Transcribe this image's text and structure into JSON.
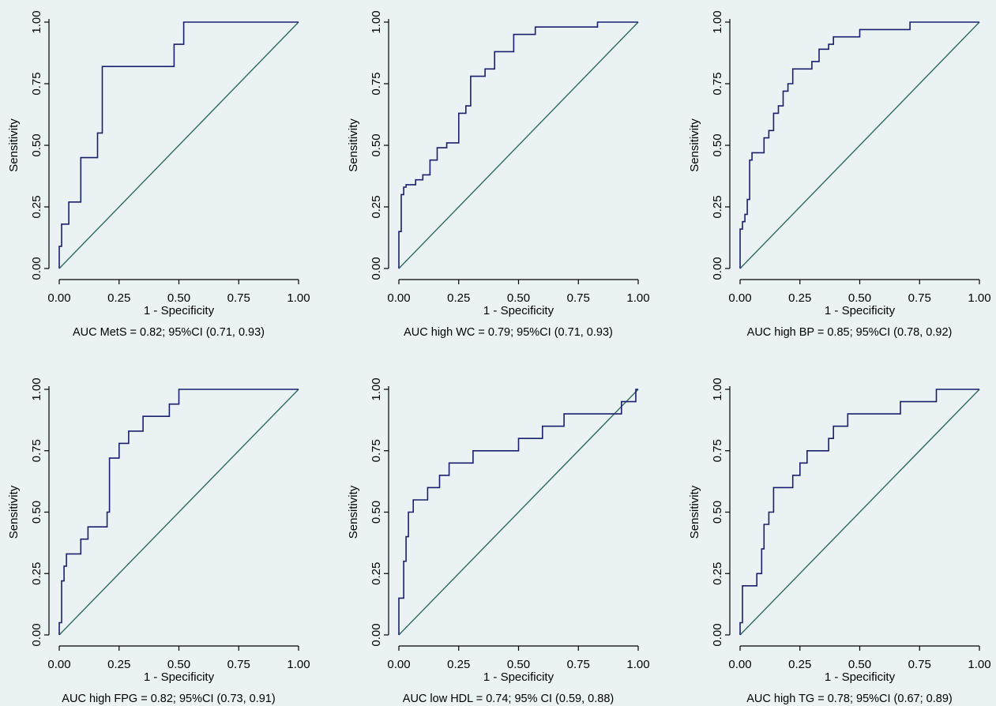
{
  "colors": {
    "background": "#eaf2f3",
    "roc_curve": "#1a1f6e",
    "reference_line": "#2e6b5f"
  },
  "chart_data": [
    {
      "type": "line",
      "xlabel": "1 - Specificity",
      "ylabel": "Sensitivity",
      "caption": "AUC MetS = 0.82; 95%CI (0.71, 0.93)",
      "xlim": [
        0,
        1
      ],
      "ylim": [
        0,
        1
      ],
      "x_ticks": [
        "0.00",
        "0.25",
        "0.50",
        "0.75",
        "1.00"
      ],
      "y_ticks": [
        "0.00",
        "0.25",
        "0.50",
        "0.75",
        "1.00"
      ],
      "grid": false,
      "reference_line": [
        [
          0,
          0
        ],
        [
          1,
          1
        ]
      ],
      "series": [
        {
          "x": [
            0,
            0,
            0.01,
            0.01,
            0.04,
            0.04,
            0.09,
            0.09,
            0.16,
            0.16,
            0.18,
            0.18,
            0.48,
            0.48,
            0.52,
            0.52,
            1.0
          ],
          "y": [
            0,
            0.09,
            0.09,
            0.18,
            0.18,
            0.27,
            0.27,
            0.45,
            0.45,
            0.55,
            0.55,
            0.82,
            0.82,
            0.91,
            0.91,
            1.0,
            1.0
          ]
        }
      ]
    },
    {
      "type": "line",
      "xlabel": "1 - Specificity",
      "ylabel": "Sensitivity",
      "caption": "AUC high WC = 0.79; 95%CI (0.71, 0.93)",
      "xlim": [
        0,
        1
      ],
      "ylim": [
        0,
        1
      ],
      "x_ticks": [
        "0.00",
        "0.25",
        "0.50",
        "0.75",
        "1.00"
      ],
      "y_ticks": [
        "0.00",
        "0.25",
        "0.50",
        "0.75",
        "1.00"
      ],
      "grid": false,
      "reference_line": [
        [
          0,
          0
        ],
        [
          1,
          1
        ]
      ],
      "series": [
        {
          "x": [
            0,
            0,
            0.01,
            0.01,
            0.02,
            0.02,
            0.03,
            0.03,
            0.07,
            0.07,
            0.1,
            0.1,
            0.13,
            0.13,
            0.16,
            0.16,
            0.2,
            0.2,
            0.25,
            0.25,
            0.28,
            0.28,
            0.3,
            0.3,
            0.36,
            0.36,
            0.4,
            0.4,
            0.48,
            0.48,
            0.57,
            0.57,
            0.83,
            0.83,
            1.0
          ],
          "y": [
            0,
            0.15,
            0.15,
            0.3,
            0.3,
            0.33,
            0.33,
            0.34,
            0.34,
            0.36,
            0.36,
            0.38,
            0.38,
            0.44,
            0.44,
            0.49,
            0.49,
            0.51,
            0.51,
            0.63,
            0.63,
            0.66,
            0.66,
            0.78,
            0.78,
            0.81,
            0.81,
            0.88,
            0.88,
            0.95,
            0.95,
            0.98,
            0.98,
            1.0,
            1.0
          ]
        }
      ]
    },
    {
      "type": "line",
      "xlabel": "1 - Specificity",
      "ylabel": "Sensitivity",
      "caption": "AUC high BP = 0.85; 95%CI (0.78, 0.92)",
      "xlim": [
        0,
        1
      ],
      "ylim": [
        0,
        1
      ],
      "x_ticks": [
        "0.00",
        "0.25",
        "0.50",
        "0.75",
        "1.00"
      ],
      "y_ticks": [
        "0.00",
        "0.25",
        "0.50",
        "0.75",
        "1.00"
      ],
      "grid": false,
      "reference_line": [
        [
          0,
          0
        ],
        [
          1,
          1
        ]
      ],
      "series": [
        {
          "x": [
            0,
            0,
            0.01,
            0.01,
            0.02,
            0.02,
            0.03,
            0.03,
            0.04,
            0.04,
            0.05,
            0.05,
            0.06,
            0.06,
            0.1,
            0.1,
            0.12,
            0.12,
            0.14,
            0.14,
            0.16,
            0.16,
            0.18,
            0.18,
            0.2,
            0.2,
            0.22,
            0.22,
            0.3,
            0.3,
            0.33,
            0.33,
            0.37,
            0.37,
            0.39,
            0.39,
            0.5,
            0.5,
            0.71,
            0.71,
            1.0
          ],
          "y": [
            0,
            0.16,
            0.16,
            0.19,
            0.19,
            0.22,
            0.22,
            0.28,
            0.28,
            0.44,
            0.44,
            0.47,
            0.47,
            0.47,
            0.47,
            0.53,
            0.53,
            0.56,
            0.56,
            0.63,
            0.63,
            0.66,
            0.66,
            0.72,
            0.72,
            0.75,
            0.75,
            0.81,
            0.81,
            0.84,
            0.84,
            0.89,
            0.89,
            0.91,
            0.91,
            0.94,
            0.94,
            0.97,
            0.97,
            1.0,
            1.0
          ]
        }
      ]
    },
    {
      "type": "line",
      "xlabel": "1 - Specificity",
      "ylabel": "Sensitivity",
      "caption": "AUC high FPG = 0.82; 95%CI (0.73, 0.91)",
      "xlim": [
        0,
        1
      ],
      "ylim": [
        0,
        1
      ],
      "x_ticks": [
        "0.00",
        "0.25",
        "0.50",
        "0.75",
        "1.00"
      ],
      "y_ticks": [
        "0.00",
        "0.25",
        "0.50",
        "0.75",
        "1.00"
      ],
      "grid": false,
      "reference_line": [
        [
          0,
          0
        ],
        [
          1,
          1
        ]
      ],
      "series": [
        {
          "x": [
            0,
            0,
            0.01,
            0.01,
            0.02,
            0.02,
            0.03,
            0.03,
            0.09,
            0.09,
            0.12,
            0.12,
            0.2,
            0.2,
            0.21,
            0.21,
            0.25,
            0.25,
            0.29,
            0.29,
            0.35,
            0.35,
            0.46,
            0.46,
            0.5,
            0.5,
            1.0
          ],
          "y": [
            0,
            0.05,
            0.05,
            0.22,
            0.22,
            0.28,
            0.28,
            0.33,
            0.33,
            0.39,
            0.39,
            0.44,
            0.44,
            0.5,
            0.5,
            0.72,
            0.72,
            0.78,
            0.78,
            0.83,
            0.83,
            0.89,
            0.89,
            0.94,
            0.94,
            1.0,
            1.0
          ]
        }
      ]
    },
    {
      "type": "line",
      "xlabel": "1 - Specificity",
      "ylabel": "Sensitivity",
      "caption": "AUC low HDL = 0.74; 95% CI (0.59, 0.88)",
      "xlim": [
        0,
        1
      ],
      "ylim": [
        0,
        1
      ],
      "x_ticks": [
        "0.00",
        "0.25",
        "0.50",
        "0.75",
        "1.00"
      ],
      "y_ticks": [
        "0.00",
        "0.25",
        "0.50",
        "0.75",
        "1.00"
      ],
      "grid": false,
      "reference_line": [
        [
          0,
          0
        ],
        [
          1,
          1
        ]
      ],
      "series": [
        {
          "x": [
            0,
            0,
            0.02,
            0.02,
            0.03,
            0.03,
            0.04,
            0.04,
            0.06,
            0.06,
            0.12,
            0.12,
            0.17,
            0.17,
            0.21,
            0.21,
            0.31,
            0.31,
            0.5,
            0.5,
            0.6,
            0.6,
            0.69,
            0.69,
            0.93,
            0.93,
            0.99,
            0.99,
            1.0
          ],
          "y": [
            0,
            0.15,
            0.15,
            0.3,
            0.3,
            0.4,
            0.4,
            0.5,
            0.5,
            0.55,
            0.55,
            0.6,
            0.6,
            0.65,
            0.65,
            0.7,
            0.7,
            0.75,
            0.75,
            0.8,
            0.8,
            0.85,
            0.85,
            0.9,
            0.9,
            0.95,
            0.95,
            1.0,
            1.0
          ]
        }
      ]
    },
    {
      "type": "line",
      "xlabel": "1 - Specificity",
      "ylabel": "Sensitivity",
      "caption": "AUC high TG = 0.78; 95%CI (0.67; 0.89)",
      "xlim": [
        0,
        1
      ],
      "ylim": [
        0,
        1
      ],
      "x_ticks": [
        "0.00",
        "0.25",
        "0.50",
        "0.75",
        "1.00"
      ],
      "y_ticks": [
        "0.00",
        "0.25",
        "0.50",
        "0.75",
        "1.00"
      ],
      "grid": false,
      "reference_line": [
        [
          0,
          0
        ],
        [
          1,
          1
        ]
      ],
      "series": [
        {
          "x": [
            0,
            0,
            0.01,
            0.01,
            0.02,
            0.02,
            0.07,
            0.07,
            0.09,
            0.09,
            0.1,
            0.1,
            0.12,
            0.12,
            0.14,
            0.14,
            0.22,
            0.22,
            0.25,
            0.25,
            0.28,
            0.28,
            0.37,
            0.37,
            0.39,
            0.39,
            0.45,
            0.45,
            0.55,
            0.55,
            0.67,
            0.67,
            0.82,
            0.82,
            1.0
          ],
          "y": [
            0,
            0.05,
            0.05,
            0.2,
            0.2,
            0.2,
            0.2,
            0.25,
            0.25,
            0.35,
            0.35,
            0.45,
            0.45,
            0.5,
            0.5,
            0.6,
            0.6,
            0.65,
            0.65,
            0.7,
            0.7,
            0.75,
            0.75,
            0.8,
            0.8,
            0.85,
            0.85,
            0.9,
            0.9,
            0.9,
            0.9,
            0.95,
            0.95,
            1.0,
            1.0
          ]
        }
      ]
    }
  ]
}
